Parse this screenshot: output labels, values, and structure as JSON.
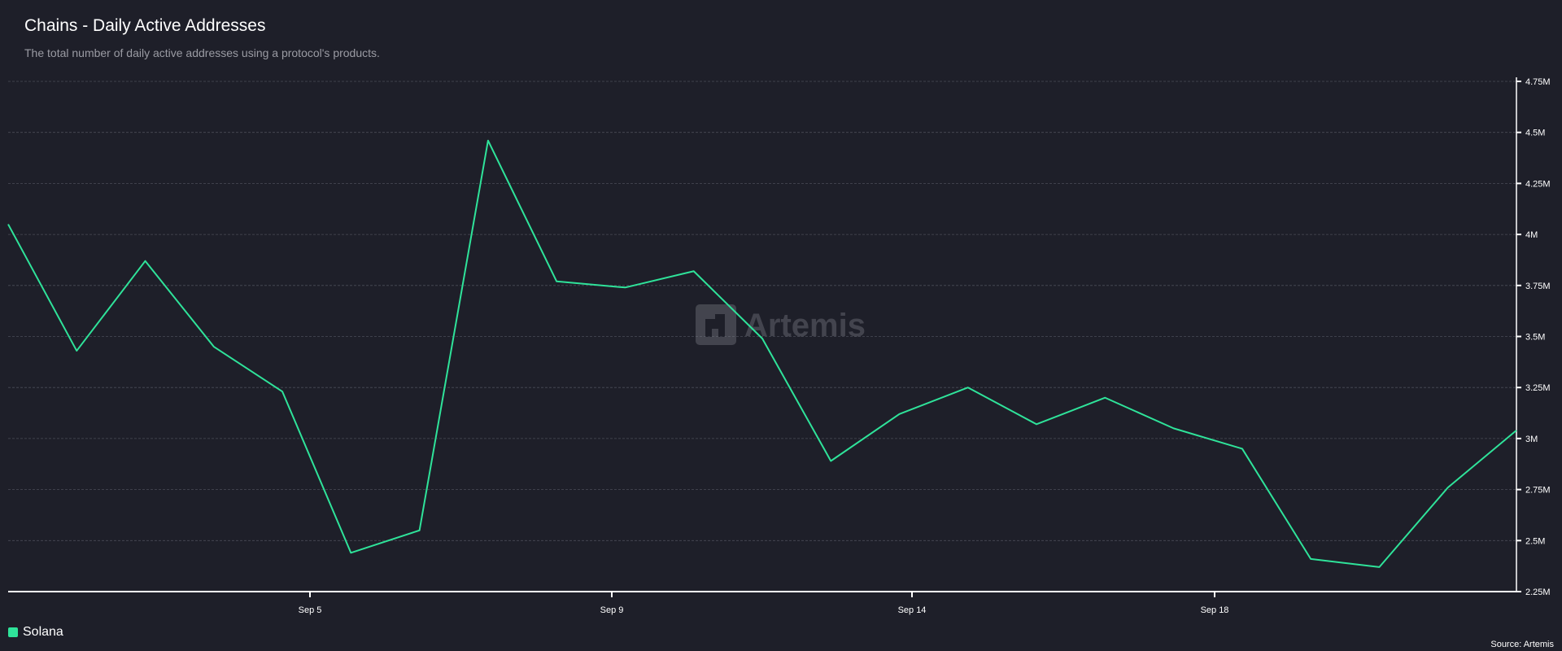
{
  "header": {
    "title": "Chains - Daily Active Addresses",
    "subtitle": "The total number of daily active addresses using a protocol's products."
  },
  "watermark": "Artemis",
  "source": "Source: Artemis",
  "chart_data": {
    "type": "line",
    "title": "Chains - Daily Active Addresses",
    "xlabel": "",
    "ylabel": "",
    "x_tick_labels": [
      "Sep 5",
      "Sep 9",
      "Sep 14",
      "Sep 18"
    ],
    "y_tick_labels": [
      "2.25M",
      "2.5M",
      "2.75M",
      "3M",
      "3.25M",
      "3.5M",
      "3.75M",
      "4M",
      "4.25M",
      "4.5M",
      "4.75M"
    ],
    "ylim": [
      2250000,
      4750000
    ],
    "grid": true,
    "legend_position": "bottom-left",
    "series": [
      {
        "name": "Solana",
        "color": "#2fe39a",
        "values": [
          4050000,
          3430000,
          3870000,
          3450000,
          3230000,
          2440000,
          2550000,
          4460000,
          3770000,
          3740000,
          3820000,
          3490000,
          2890000,
          3120000,
          3250000,
          3070000,
          3200000,
          3050000,
          2950000,
          2410000,
          2370000,
          2760000,
          3040000
        ]
      }
    ]
  },
  "colors": {
    "background": "#1e1f29",
    "grid": "#4a4c57",
    "axis": "#ffffff"
  }
}
